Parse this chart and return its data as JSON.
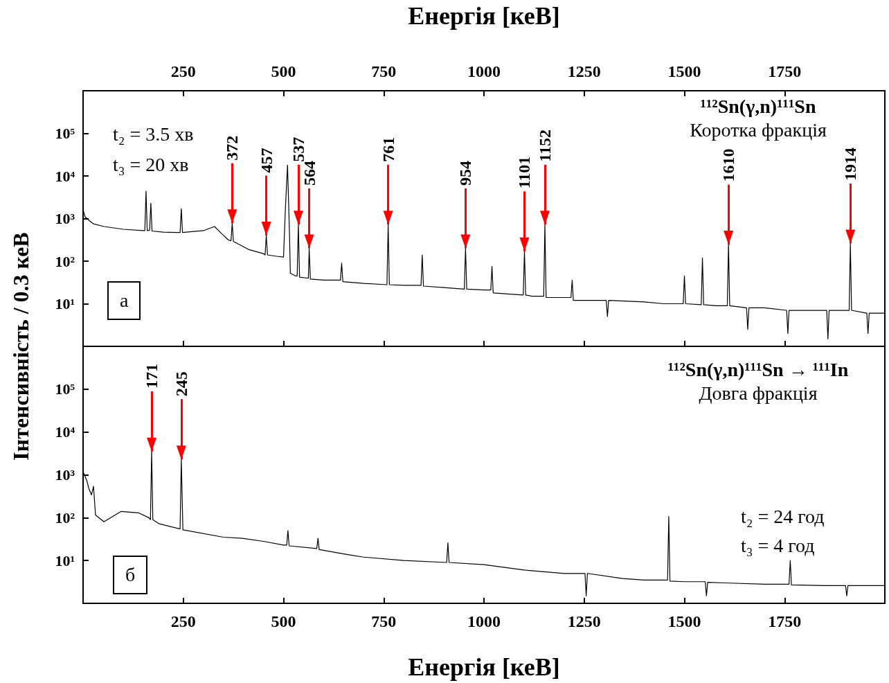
{
  "chart_data": [
    {
      "type": "line",
      "title": "¹¹²Sn(γ,n)¹¹¹Sn",
      "subtitle": "Коротка фракція",
      "ylabel": "Інтенсивність / 0.3 кеВ",
      "x2label": "Енергія [кеВ]",
      "xlim": [
        0,
        2000
      ],
      "x2lim": [
        0,
        2000
      ],
      "x2ticks": [
        250,
        500,
        750,
        1000,
        1250,
        1500,
        1750
      ],
      "tick_labels": "y",
      "ylim": [
        1,
        1000000
      ],
      "yticks": [
        {
          "value": 10,
          "label": "10¹"
        },
        {
          "value": 100,
          "label": "10²"
        },
        {
          "value": 1000,
          "label": "10³"
        },
        {
          "value": 10000,
          "label": "10⁴"
        },
        {
          "value": 100000,
          "label": "10⁵"
        }
      ],
      "log": "y",
      "grid": false,
      "marker": "none",
      "line_style": "solid",
      "series": [
        {
          "color": "#000000",
          "x": [
            0,
            5,
            15,
            26,
            52,
            100,
            150,
            154,
            157,
            160,
            166,
            169,
            172,
            200,
            240,
            242,
            245,
            248,
            300,
            328,
            345,
            362,
            369,
            372,
            375,
            414,
            450,
            454,
            457,
            460,
            483,
            500,
            505,
            510,
            515,
            517,
            530,
            534,
            537,
            540,
            560,
            562,
            564,
            567,
            600,
            642,
            645,
            648,
            700,
            758,
            761,
            764,
            800,
            843,
            846,
            849,
            900,
            951,
            954,
            957,
            1000,
            1017,
            1020,
            1023,
            1060,
            1098,
            1101,
            1104,
            1120,
            1149,
            1152,
            1155,
            1200,
            1217,
            1220,
            1223,
            1300,
            1305,
            1308,
            1311,
            1400,
            1450,
            1497,
            1500,
            1503,
            1542,
            1545,
            1548,
            1580,
            1607,
            1610,
            1613,
            1655,
            1658,
            1661,
            1700,
            1755,
            1758,
            1761,
            1800,
            1855,
            1858,
            1861,
            1900,
            1911,
            1914,
            1917,
            1955,
            1958,
            1961,
            2000
          ],
          "values": [
            1600,
            1100,
            900,
            750,
            650,
            560,
            520,
            520,
            4400,
            520,
            530,
            2300,
            510,
            480,
            470,
            470,
            1700,
            470,
            520,
            650,
            450,
            316,
            300,
            780,
            290,
            186,
            150,
            140,
            400,
            140,
            130,
            125,
            2000,
            18000,
            400,
            52,
            45,
            45,
            720,
            42,
            40,
            40,
            200,
            38,
            36,
            36,
            90,
            33,
            30,
            28,
            720,
            28,
            27,
            27,
            140,
            26,
            24,
            22,
            200,
            22,
            21,
            21,
            75,
            18,
            17,
            16,
            170,
            16,
            15,
            15,
            720,
            14,
            14,
            14,
            36,
            12,
            12,
            12,
            5,
            12,
            11,
            10,
            10,
            45,
            10,
            9.5,
            120,
            9.5,
            9,
            9,
            245,
            9,
            8,
            2.5,
            8,
            8,
            7,
            2,
            7,
            7,
            7,
            1.5,
            7,
            7,
            7,
            260,
            7,
            6,
            2,
            6,
            6
          ]
        }
      ],
      "annotations": [
        "t₂ = 3.5 хв",
        "t₃ = 20 хв",
        "а",
        {
          "text": "372",
          "x": 372,
          "y": 780
        },
        {
          "text": "457",
          "x": 457,
          "y": 400
        },
        {
          "text": "537",
          "x": 537,
          "y": 720
        },
        {
          "text": "564",
          "x": 564,
          "y": 200
        },
        {
          "text": "761",
          "x": 761,
          "y": 720
        },
        {
          "text": "954",
          "x": 954,
          "y": 200
        },
        {
          "text": "1101",
          "x": 1101,
          "y": 170
        },
        {
          "text": "1152",
          "x": 1152,
          "y": 720
        },
        {
          "text": "1610",
          "x": 1610,
          "y": 245
        },
        {
          "text": "1914",
          "x": 1914,
          "y": 260
        }
      ]
    },
    {
      "type": "line",
      "title": "¹¹²Sn(γ,n)¹¹¹Sn → ¹¹¹In",
      "subtitle": "Довга фракція",
      "xlabel": "Енергія [кеВ]",
      "xlim": [
        0,
        2000
      ],
      "xticks": [
        250,
        500,
        750,
        1000,
        1250,
        1500,
        1750
      ],
      "ylim": [
        1,
        1000000
      ],
      "yticks": [
        {
          "value": 10,
          "label": "10¹"
        },
        {
          "value": 100,
          "label": "10²"
        },
        {
          "value": 1000,
          "label": "10³"
        },
        {
          "value": 10000,
          "label": "10⁴"
        },
        {
          "value": 100000,
          "label": "10⁵"
        }
      ],
      "log": "y",
      "grid": false,
      "marker": "none",
      "line_style": "solid",
      "series": [
        {
          "color": "#000000",
          "x": [
            0,
            10,
            14,
            21,
            26,
            31,
            52,
            95,
            138,
            164,
            168,
            171,
            174,
            190,
            240,
            242,
            245,
            249,
            259,
            350,
            397,
            450,
            500,
            508,
            511,
            514,
            583,
            586,
            589,
            655,
            700,
            800,
            907,
            910,
            913,
            1000,
            1100,
            1200,
            1252,
            1255,
            1258,
            1345,
            1400,
            1458,
            1461,
            1464,
            1500,
            1552,
            1555,
            1558,
            1600,
            1700,
            1761,
            1764,
            1767,
            1850,
            1902,
            1905,
            1908,
            2000
          ],
          "values": [
            1200,
            700,
            490,
            340,
            540,
            115,
            80,
            140,
            130,
            100,
            90,
            3500,
            90,
            72,
            55,
            55,
            2300,
            52,
            50,
            35,
            33,
            28,
            23,
            23,
            50,
            22,
            19,
            33,
            18,
            14,
            12,
            10,
            9,
            26,
            9,
            8,
            6,
            5,
            5,
            1.5,
            5,
            3.8,
            3.5,
            3.5,
            107,
            3.3,
            3.2,
            3.2,
            1.5,
            3.1,
            3,
            2.8,
            2.8,
            10,
            2.7,
            2.6,
            2.6,
            1.5,
            2.6,
            2.6
          ]
        }
      ],
      "annotations": [
        "t₂ = 24 год",
        "t₃ = 4 год",
        "б",
        {
          "text": "171",
          "x": 171,
          "y": 3500
        },
        {
          "text": "245",
          "x": 245,
          "y": 2300
        }
      ]
    }
  ]
}
